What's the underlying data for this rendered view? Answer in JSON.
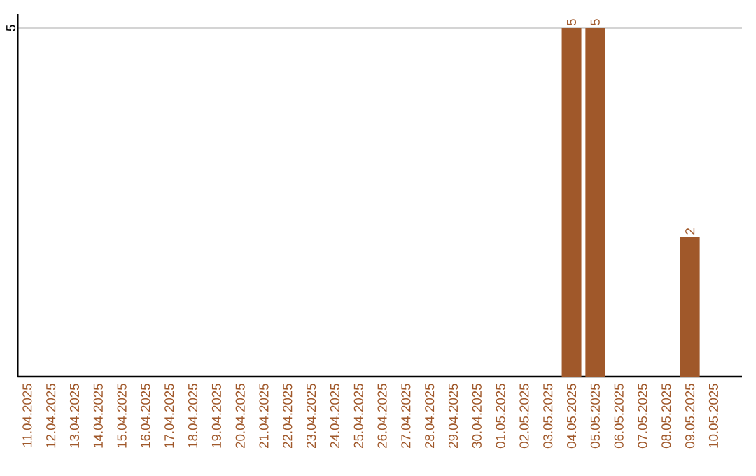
{
  "chart_data": {
    "type": "bar",
    "categories": [
      "11.04.2025",
      "12.04.2025",
      "13.04.2025",
      "14.04.2025",
      "15.04.2025",
      "16.04.2025",
      "17.04.2025",
      "18.04.2025",
      "19.04.2025",
      "20.04.2025",
      "21.04.2025",
      "22.04.2025",
      "23.04.2025",
      "24.04.2025",
      "25.04.2025",
      "26.04.2025",
      "27.04.2025",
      "28.04.2025",
      "29.04.2025",
      "30.04.2025",
      "01.05.2025",
      "02.05.2025",
      "03.05.2025",
      "04.05.2025",
      "05.05.2025",
      "06.05.2025",
      "07.05.2025",
      "08.05.2025",
      "09.05.2025",
      "10.05.2025"
    ],
    "values": [
      null,
      null,
      null,
      null,
      null,
      null,
      null,
      null,
      null,
      null,
      null,
      null,
      null,
      null,
      null,
      null,
      null,
      null,
      null,
      null,
      null,
      null,
      null,
      5,
      5,
      null,
      null,
      null,
      2,
      null
    ],
    "data_labels": true,
    "color": "#a0582a",
    "ylim": [
      0,
      5.2
    ],
    "yticks": [
      5
    ],
    "grid": "y"
  }
}
